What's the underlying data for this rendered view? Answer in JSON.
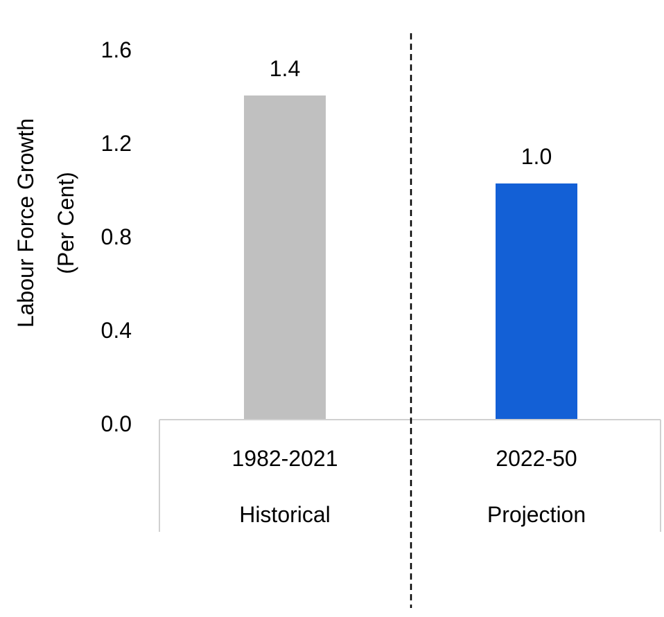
{
  "chart_data": {
    "type": "bar",
    "ylabel_lines": [
      "Labour Force Growth",
      "(Per Cent)"
    ],
    "yticks": [
      "1.6",
      "1.2",
      "0.8",
      "0.4",
      "0.0"
    ],
    "ylim": [
      0,
      1.6
    ],
    "grid": false,
    "categories": [
      {
        "label": "1982-2021",
        "group": "Historical",
        "value": 1.4,
        "value_label": "1.4",
        "color": "#c0c0c0"
      },
      {
        "label": "2022-50",
        "group": "Projection",
        "value": 1.02,
        "value_label": "1.0",
        "color": "#1360d6"
      }
    ],
    "divider": "dashed vertical line between Historical and Projection"
  }
}
